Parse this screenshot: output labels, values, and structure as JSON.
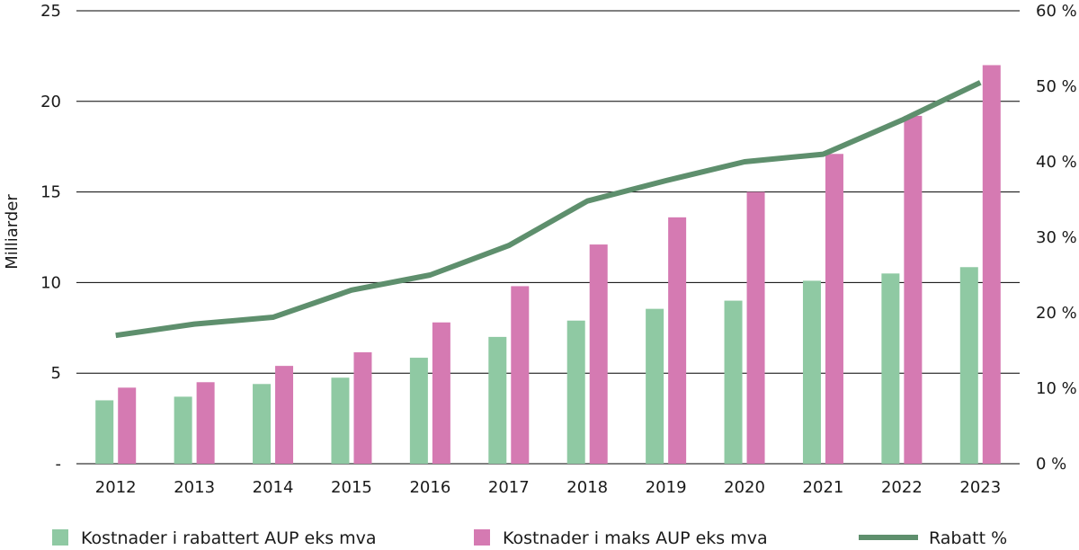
{
  "chart_data": {
    "type": "bar",
    "ylabel": "Milliarder",
    "categories": [
      "2012",
      "2013",
      "2014",
      "2015",
      "2016",
      "2017",
      "2018",
      "2019",
      "2020",
      "2021",
      "2022",
      "2023"
    ],
    "left_axis": {
      "ylim": [
        0,
        25
      ],
      "ticks": [
        0,
        5,
        10,
        15,
        20,
        25
      ],
      "tick_labels": [
        "-",
        "5",
        "10",
        "15",
        "20",
        "25"
      ]
    },
    "right_axis": {
      "ylim": [
        0,
        60
      ],
      "ticks": [
        0,
        10,
        20,
        30,
        40,
        50,
        60
      ],
      "tick_labels": [
        "0 %",
        "10 %",
        "20 %",
        "30 %",
        "40 %",
        "50 %",
        "60 %"
      ]
    },
    "grid": true,
    "legend_position": "bottom",
    "series": [
      {
        "name": "Kostnader i rabattert AUP eks mva",
        "kind": "bar",
        "axis": "left",
        "color": "#8fc9a3",
        "values": [
          3.5,
          3.7,
          4.4,
          4.75,
          5.85,
          7.0,
          7.9,
          8.55,
          9.0,
          10.1,
          10.5,
          10.85
        ]
      },
      {
        "name": "Kostnader i maks AUP eks mva",
        "kind": "bar",
        "axis": "left",
        "color": "#d57ab2",
        "values": [
          4.2,
          4.5,
          5.4,
          6.15,
          7.8,
          9.8,
          12.1,
          13.6,
          15.0,
          17.1,
          19.2,
          22.0
        ]
      },
      {
        "name": "Rabatt %",
        "kind": "line",
        "axis": "right",
        "color": "#5e8f6d",
        "values": [
          17.0,
          18.5,
          19.4,
          23.0,
          25.0,
          28.9,
          34.8,
          37.5,
          40.0,
          41.0,
          45.5,
          50.5
        ]
      }
    ]
  }
}
